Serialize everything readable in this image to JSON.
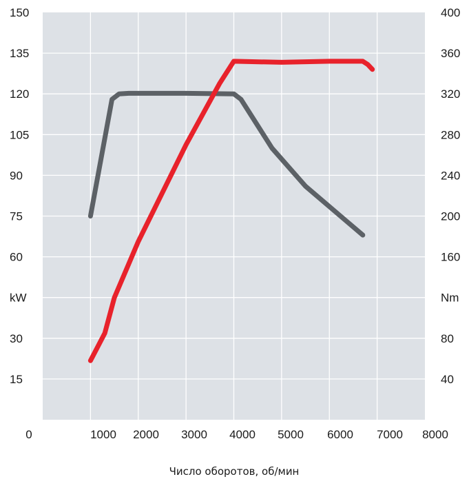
{
  "chart_data": {
    "type": "line",
    "title": "",
    "xlabel": "Число оборотов, об/мин",
    "x_ticks": [
      "0",
      "1000",
      "2000",
      "3000",
      "4000",
      "5000",
      "6000",
      "7000",
      "8000"
    ],
    "left_ticks": [
      "150",
      "135",
      "120",
      "105",
      "90",
      "75",
      "60",
      "kW",
      "30",
      "15"
    ],
    "right_ticks": [
      "400",
      "360",
      "320",
      "280",
      "240",
      "200",
      "160",
      "Nm",
      "80",
      "40"
    ],
    "xlim": [
      0,
      8000
    ],
    "y_left_lim": [
      0,
      150
    ],
    "y_right_lim": [
      0,
      400
    ],
    "grid": true,
    "background_color": "#dde1e6",
    "series": [
      {
        "axis": "left",
        "color": "#5c6166",
        "x": [
          1000,
          1450,
          1600,
          1800,
          3000,
          4000,
          4150,
          4800,
          5500,
          6700
        ],
        "y": [
          75,
          118,
          120,
          120.2,
          120.2,
          120,
          118,
          100,
          86,
          68
        ]
      },
      {
        "axis": "right",
        "color": "#e8222b",
        "x": [
          1000,
          1300,
          1500,
          2000,
          3000,
          3700,
          4000,
          5000,
          6000,
          6700,
          6800,
          6900
        ],
        "y": [
          58,
          85,
          120,
          175,
          270,
          330,
          352,
          351,
          352,
          352,
          349,
          344
        ]
      }
    ]
  }
}
